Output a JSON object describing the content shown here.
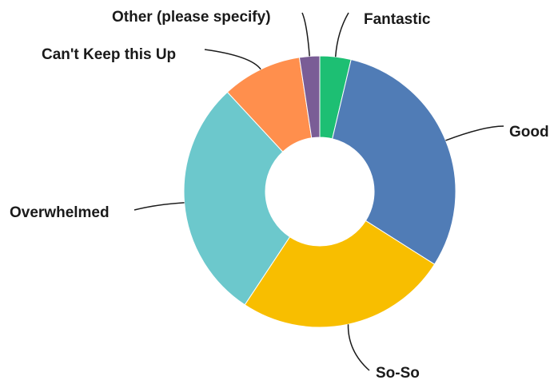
{
  "chart_data": {
    "type": "pie",
    "style": "donut",
    "categories": [
      "Fantastic",
      "Good",
      "So-So",
      "Overwhelmed",
      "Can't Keep this Up",
      "Other (please specify)"
    ],
    "values": [
      3.7,
      30.3,
      25.3,
      28.8,
      9.5,
      2.4
    ],
    "colors": [
      "#1dbf73",
      "#507cb6",
      "#f8be00",
      "#6cc8cc",
      "#ff8f4d",
      "#7a5d96"
    ],
    "legend": "none (labels with leader lines)"
  }
}
